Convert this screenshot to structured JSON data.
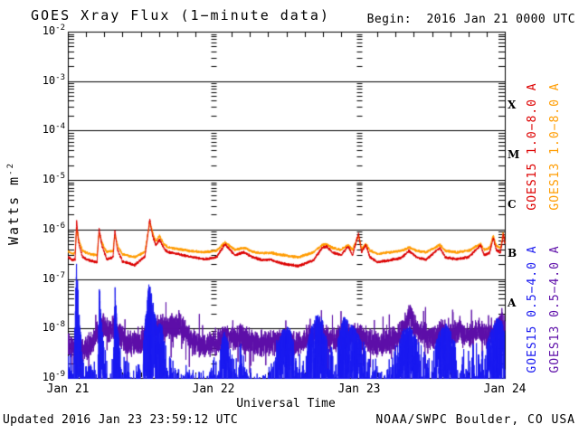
{
  "header": {
    "title": "GOES Xray Flux (1−minute data)",
    "begin_label": "Begin:  2016 Jan 21 0000 UTC"
  },
  "footer": {
    "updated": "Updated 2016 Jan 23 23:59:12 UTC",
    "source": "NOAA/SWPC Boulder, CO USA"
  },
  "axes": {
    "x_label": "Universal Time",
    "y_label_base": "Watts m",
    "y_label_exponent": "-2"
  },
  "chart_data": {
    "type": "line",
    "title": "GOES Xray Flux (1-minute data)",
    "xlabel": "Universal Time",
    "ylabel": "Watts m^-2",
    "background_color": "#ffffff",
    "axis_color": "#000000",
    "grid": "horizontal major decade lines; dashed minor-tick columns at day boundaries",
    "legend_position": "right, rotated 90deg",
    "x_range_hours": [
      0,
      72
    ],
    "x_major_ticks_hours": [
      0,
      24,
      48,
      72
    ],
    "x_tick_labels": [
      "Jan 21",
      "Jan 22",
      "Jan 23",
      "Jan 24"
    ],
    "x_minor_tick_hours": 3,
    "y_scale": "log10",
    "y_range_log10": [
      -9,
      -2
    ],
    "y_tick_exponents": [
      -2,
      -3,
      -4,
      -5,
      -6,
      -7,
      -8,
      -9
    ],
    "flare_classes": [
      {
        "label": "X",
        "log10_center": -3.5
      },
      {
        "label": "M",
        "log10_center": -4.5
      },
      {
        "label": "C",
        "log10_center": -5.5
      },
      {
        "label": "B",
        "log10_center": -6.5
      },
      {
        "label": "A",
        "log10_center": -7.5
      }
    ],
    "legend": [
      {
        "label": "GOES15 1.0−8.0 A",
        "color": "#dd0000",
        "column": 0,
        "group": "long"
      },
      {
        "label": "GOES13 1.0−8.0 A",
        "color": "#ff9c00",
        "column": 1,
        "group": "long"
      },
      {
        "label": "GOES15 0.5−4.0 A",
        "color": "#1a1af0",
        "column": 0,
        "group": "short"
      },
      {
        "label": "GOES13 0.5−4.0 A",
        "color": "#5d0ea8",
        "column": 1,
        "group": "short"
      }
    ],
    "series": [
      {
        "name": "GOES13 0.5-4.0 A",
        "satellite": "GOES13",
        "channel": "0.5-4.0 A",
        "color": "#5d0ea8",
        "style": "band",
        "noise": 0.3,
        "seed": 44,
        "keypoints_log10_flux": [
          [
            0,
            -8.35
          ],
          [
            2,
            -8.4
          ],
          [
            4,
            -8.33
          ],
          [
            5,
            -8.05
          ],
          [
            6,
            -7.98
          ],
          [
            7,
            -8.02
          ],
          [
            7.8,
            -7.95
          ],
          [
            8.5,
            -8.12
          ],
          [
            10,
            -8.32
          ],
          [
            12,
            -8.28
          ],
          [
            13.3,
            -7.88
          ],
          [
            14.2,
            -8.02
          ],
          [
            15.2,
            -7.92
          ],
          [
            16.2,
            -8.05
          ],
          [
            17.2,
            -7.96
          ],
          [
            18.5,
            -7.97
          ],
          [
            19.5,
            -8.12
          ],
          [
            21,
            -8.3
          ],
          [
            23,
            -8.35
          ],
          [
            25,
            -8.28
          ],
          [
            26,
            -8.14
          ],
          [
            27,
            -8.2
          ],
          [
            28.5,
            -8.16
          ],
          [
            30,
            -8.26
          ],
          [
            32,
            -8.3
          ],
          [
            34,
            -8.28
          ],
          [
            36,
            -8.32
          ],
          [
            38,
            -8.28
          ],
          [
            40,
            -8.16
          ],
          [
            41,
            -8.06
          ],
          [
            42,
            -8.12
          ],
          [
            43,
            -8.22
          ],
          [
            45,
            -8.2
          ],
          [
            46.5,
            -8.12
          ],
          [
            48,
            -8.16
          ],
          [
            49.5,
            -8.26
          ],
          [
            51,
            -8.3
          ],
          [
            53,
            -8.26
          ],
          [
            55,
            -8.1
          ],
          [
            55.8,
            -7.92
          ],
          [
            56.3,
            -7.64
          ],
          [
            57,
            -7.96
          ],
          [
            58,
            -8.12
          ],
          [
            60,
            -8.2
          ],
          [
            61.5,
            -8.06
          ],
          [
            63,
            -8.16
          ],
          [
            64.5,
            -8.06
          ],
          [
            66,
            -8.16
          ],
          [
            67.5,
            -8.06
          ],
          [
            69,
            -8.14
          ],
          [
            70.5,
            -8.0
          ],
          [
            71.5,
            -7.86
          ],
          [
            72,
            -8.0
          ]
        ]
      },
      {
        "name": "GOES15 0.5-4.0 A",
        "satellite": "GOES15",
        "channel": "0.5-4.0 A",
        "color": "#1a1af0",
        "style": "spiky",
        "noise": 0.8,
        "seed": 33,
        "keypoints_log10_flux": [
          [
            0,
            -8.6
          ],
          [
            1.0,
            -8.55
          ],
          [
            1.45,
            -6.55
          ],
          [
            1.8,
            -7.6
          ],
          [
            2.5,
            -8.6
          ],
          [
            3.5,
            -8.7
          ],
          [
            4.9,
            -8.7
          ],
          [
            5.15,
            -7.07
          ],
          [
            5.6,
            -8.0
          ],
          [
            6.5,
            -8.7
          ],
          [
            7.5,
            -8.7
          ],
          [
            7.75,
            -7.1
          ],
          [
            8.2,
            -8.0
          ],
          [
            9,
            -8.6
          ],
          [
            10.5,
            -8.8
          ],
          [
            12,
            -8.8
          ],
          [
            13.4,
            -7.05
          ],
          [
            14.1,
            -7.5
          ],
          [
            14.8,
            -8.0
          ],
          [
            15.3,
            -7.8
          ],
          [
            16,
            -8.3
          ],
          [
            17,
            -8.7
          ],
          [
            19,
            -8.9
          ],
          [
            21,
            -9.0
          ],
          [
            23,
            -8.9
          ],
          [
            24.5,
            -8.6
          ],
          [
            25.8,
            -8.05
          ],
          [
            26.5,
            -8.3
          ],
          [
            27.5,
            -8.6
          ],
          [
            28.8,
            -8.35
          ],
          [
            30,
            -8.8
          ],
          [
            31.5,
            -9.0
          ],
          [
            33,
            -8.8
          ],
          [
            34.5,
            -8.3
          ],
          [
            35.5,
            -8.0
          ],
          [
            36.5,
            -7.95
          ],
          [
            37.5,
            -8.4
          ],
          [
            38.8,
            -8.7
          ],
          [
            40,
            -8.0
          ],
          [
            41,
            -7.7
          ],
          [
            42,
            -7.8
          ],
          [
            42.8,
            -8.3
          ],
          [
            44,
            -8.6
          ],
          [
            44.8,
            -8.0
          ],
          [
            45.5,
            -7.75
          ],
          [
            46.5,
            -7.9
          ],
          [
            47.5,
            -8.0
          ],
          [
            48.5,
            -8.3
          ],
          [
            50,
            -8.6
          ],
          [
            51.5,
            -8.8
          ],
          [
            53,
            -8.7
          ],
          [
            54.5,
            -8.3
          ],
          [
            55.3,
            -8.0
          ],
          [
            56.3,
            -7.95
          ],
          [
            57.3,
            -8.15
          ],
          [
            58.5,
            -8.5
          ],
          [
            60,
            -8.6
          ],
          [
            61.2,
            -8.05
          ],
          [
            62.3,
            -7.9
          ],
          [
            63.3,
            -8.1
          ],
          [
            64.5,
            -8.5
          ],
          [
            66,
            -8.5
          ],
          [
            67.3,
            -8.3
          ],
          [
            68.5,
            -8.5
          ],
          [
            69.8,
            -8.0
          ],
          [
            70.7,
            -7.78
          ],
          [
            71.5,
            -7.85
          ],
          [
            72,
            -8.1
          ]
        ]
      },
      {
        "name": "GOES13 1.0-8.0 A",
        "satellite": "GOES13",
        "channel": "1.0-8.0 A",
        "color": "#ff9c00",
        "style": "smooth",
        "noise": 0.035,
        "seed": 22,
        "keypoints_log10_flux": [
          [
            0,
            -6.43
          ],
          [
            0.8,
            -6.49
          ],
          [
            1.2,
            -6.47
          ],
          [
            1.45,
            -5.95
          ],
          [
            1.75,
            -6.18
          ],
          [
            2.4,
            -6.43
          ],
          [
            3.5,
            -6.49
          ],
          [
            4.8,
            -6.52
          ],
          [
            5.15,
            -6.06
          ],
          [
            5.6,
            -6.26
          ],
          [
            6.4,
            -6.46
          ],
          [
            7.45,
            -6.43
          ],
          [
            7.75,
            -6.1
          ],
          [
            8.15,
            -6.31
          ],
          [
            9,
            -6.5
          ],
          [
            11,
            -6.56
          ],
          [
            12.7,
            -6.45
          ],
          [
            13.5,
            -5.86
          ],
          [
            13.95,
            -6.06
          ],
          [
            14.5,
            -6.24
          ],
          [
            15.1,
            -6.13
          ],
          [
            15.8,
            -6.29
          ],
          [
            16.5,
            -6.36
          ],
          [
            18,
            -6.39
          ],
          [
            20,
            -6.43
          ],
          [
            22.5,
            -6.46
          ],
          [
            24.5,
            -6.43
          ],
          [
            25.9,
            -6.26
          ],
          [
            26.5,
            -6.31
          ],
          [
            27.5,
            -6.41
          ],
          [
            29,
            -6.37
          ],
          [
            30.5,
            -6.45
          ],
          [
            32,
            -6.48
          ],
          [
            33.5,
            -6.47
          ],
          [
            35,
            -6.51
          ],
          [
            38,
            -6.56
          ],
          [
            40.5,
            -6.46
          ],
          [
            41.9,
            -6.31
          ],
          [
            42.6,
            -6.29
          ],
          [
            43.6,
            -6.37
          ],
          [
            45,
            -6.41
          ],
          [
            46.2,
            -6.31
          ],
          [
            46.9,
            -6.41
          ],
          [
            47.9,
            -6.12
          ],
          [
            48.4,
            -6.39
          ],
          [
            49.1,
            -6.29
          ],
          [
            49.8,
            -6.43
          ],
          [
            51,
            -6.49
          ],
          [
            53,
            -6.46
          ],
          [
            55,
            -6.43
          ],
          [
            56.2,
            -6.36
          ],
          [
            57.5,
            -6.43
          ],
          [
            59,
            -6.46
          ],
          [
            61.3,
            -6.31
          ],
          [
            62.2,
            -6.43
          ],
          [
            64,
            -6.46
          ],
          [
            66,
            -6.43
          ],
          [
            68,
            -6.29
          ],
          [
            68.6,
            -6.41
          ],
          [
            69.5,
            -6.37
          ],
          [
            70.1,
            -6.13
          ],
          [
            70.6,
            -6.33
          ],
          [
            71.3,
            -6.37
          ],
          [
            71.75,
            -6.06
          ],
          [
            72,
            -6.26
          ]
        ]
      },
      {
        "name": "GOES15 1.0-8.0 A",
        "satellite": "GOES15",
        "channel": "1.0-8.0 A",
        "color": "#dd0000",
        "style": "smooth",
        "noise": 0.035,
        "seed": 11,
        "keypoints_log10_flux": [
          [
            0,
            -6.55
          ],
          [
            0.8,
            -6.62
          ],
          [
            1.2,
            -6.6
          ],
          [
            1.45,
            -5.82
          ],
          [
            1.75,
            -6.25
          ],
          [
            2.4,
            -6.55
          ],
          [
            3.5,
            -6.62
          ],
          [
            4.8,
            -6.66
          ],
          [
            5.15,
            -5.98
          ],
          [
            5.6,
            -6.32
          ],
          [
            6.4,
            -6.6
          ],
          [
            7.45,
            -6.56
          ],
          [
            7.75,
            -6.02
          ],
          [
            8.15,
            -6.4
          ],
          [
            9,
            -6.64
          ],
          [
            11,
            -6.72
          ],
          [
            12.7,
            -6.55
          ],
          [
            13.5,
            -5.8
          ],
          [
            13.95,
            -6.12
          ],
          [
            14.5,
            -6.32
          ],
          [
            15.1,
            -6.2
          ],
          [
            15.8,
            -6.38
          ],
          [
            16.5,
            -6.46
          ],
          [
            18,
            -6.49
          ],
          [
            20,
            -6.55
          ],
          [
            22.5,
            -6.6
          ],
          [
            24.5,
            -6.56
          ],
          [
            25.9,
            -6.3
          ],
          [
            26.5,
            -6.38
          ],
          [
            27.5,
            -6.52
          ],
          [
            29,
            -6.46
          ],
          [
            30.5,
            -6.56
          ],
          [
            32,
            -6.62
          ],
          [
            33.5,
            -6.61
          ],
          [
            35,
            -6.68
          ],
          [
            38,
            -6.74
          ],
          [
            40.5,
            -6.62
          ],
          [
            41.9,
            -6.37
          ],
          [
            42.6,
            -6.34
          ],
          [
            43.6,
            -6.46
          ],
          [
            45,
            -6.52
          ],
          [
            46.2,
            -6.34
          ],
          [
            46.9,
            -6.52
          ],
          [
            47.9,
            -6.08
          ],
          [
            48.4,
            -6.46
          ],
          [
            49.1,
            -6.31
          ],
          [
            49.8,
            -6.56
          ],
          [
            51,
            -6.66
          ],
          [
            53,
            -6.62
          ],
          [
            55,
            -6.57
          ],
          [
            56.2,
            -6.43
          ],
          [
            57.5,
            -6.56
          ],
          [
            59,
            -6.61
          ],
          [
            61.3,
            -6.37
          ],
          [
            62.2,
            -6.56
          ],
          [
            64,
            -6.6
          ],
          [
            66,
            -6.56
          ],
          [
            68,
            -6.32
          ],
          [
            68.6,
            -6.52
          ],
          [
            69.5,
            -6.47
          ],
          [
            70.1,
            -6.17
          ],
          [
            70.6,
            -6.42
          ],
          [
            71.3,
            -6.46
          ],
          [
            71.75,
            -6.08
          ],
          [
            72,
            -6.3
          ]
        ]
      }
    ]
  }
}
